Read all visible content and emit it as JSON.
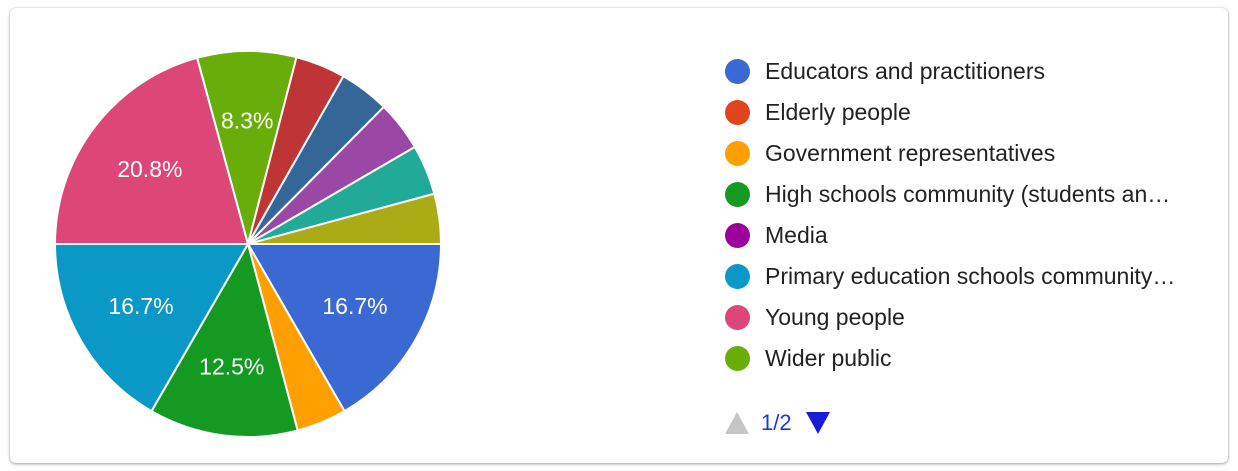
{
  "chart_data": {
    "type": "pie",
    "slices": [
      {
        "label": "Educators and practitioners",
        "value": 16.7,
        "display": "16.7%",
        "color": "#3b69d4"
      },
      {
        "label": "Government representatives",
        "value": 4.2,
        "display": "",
        "color": "#ff9f00"
      },
      {
        "label": "High schools community (students an…",
        "value": 12.5,
        "display": "12.5%",
        "color": "#149a23"
      },
      {
        "label": "Primary education schools community…",
        "value": 16.7,
        "display": "16.7%",
        "color": "#0a99c6"
      },
      {
        "label": "Young people",
        "value": 20.8,
        "display": "20.8%",
        "color": "#dc4778"
      },
      {
        "label": "Wider public",
        "value": 8.3,
        "display": "8.3%",
        "color": "#69ad0b"
      },
      {
        "label": "",
        "value": 4.2,
        "display": "",
        "color": "#bf3434"
      },
      {
        "label": "",
        "value": 4.2,
        "display": "",
        "color": "#346697"
      },
      {
        "label": "",
        "value": 4.2,
        "display": "",
        "color": "#9b47a5"
      },
      {
        "label": "",
        "value": 4.2,
        "display": "",
        "color": "#22aa99"
      },
      {
        "label": "",
        "value": 4.2,
        "display": "",
        "color": "#aaab15"
      }
    ],
    "legend_position": "right"
  },
  "legend": {
    "items": [
      {
        "label": "Educators and practitioners",
        "color": "#3b69d4"
      },
      {
        "label": "Elderly people",
        "color": "#e0431d"
      },
      {
        "label": "Government representatives",
        "color": "#ff9f00"
      },
      {
        "label": "High schools community (students an…",
        "color": "#149a23"
      },
      {
        "label": "Media",
        "color": "#9c009c"
      },
      {
        "label": "Primary education schools community…",
        "color": "#0a99c6"
      },
      {
        "label": "Young people",
        "color": "#dc4778"
      },
      {
        "label": "Wider public",
        "color": "#69ad0b"
      }
    ]
  },
  "pager": {
    "text": "1/2",
    "prev_icon": "triangle-up-icon",
    "next_icon": "triangle-down-icon"
  }
}
